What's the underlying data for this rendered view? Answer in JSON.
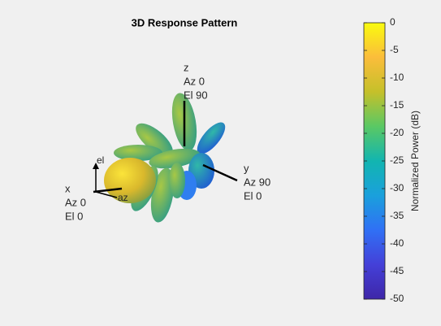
{
  "chart_data": {
    "type": "pattern3d",
    "title": "3D Response Pattern",
    "colorbar_label": "Normalized Power (dB)",
    "clim": [
      -50,
      0
    ],
    "cticks": [
      0,
      -5,
      -10,
      -15,
      -20,
      -25,
      -30,
      -35,
      -40,
      -45,
      -50
    ],
    "colormap": [
      "#f9fb0e",
      "#fbbd3b",
      "#c5c02a",
      "#5ac864",
      "#12b5b0",
      "#1aa0dc",
      "#3070f5",
      "#4440d8",
      "#3e26a8"
    ],
    "annotations": [
      {
        "lines": [
          "z",
          "Az 0",
          "El 90"
        ]
      },
      {
        "lines": [
          "y",
          "Az 90",
          "El 0"
        ]
      },
      {
        "lines": [
          "x",
          "Az 0",
          "El 0"
        ]
      }
    ],
    "local_axes": [
      "el",
      "az"
    ]
  }
}
